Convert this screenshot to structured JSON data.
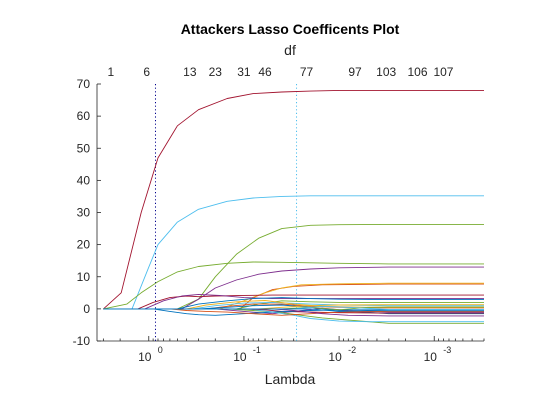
{
  "chart_data": {
    "type": "line",
    "title": "Attackers Lasso Coefficents Plot",
    "top_axis_label": "df",
    "xlabel": "Lambda",
    "ylabel": "",
    "x_scale": "log-reversed",
    "xlim": [
      3.5,
      0.0003
    ],
    "ylim": [
      -10,
      70
    ],
    "y_ticks": [
      -10,
      0,
      10,
      20,
      30,
      40,
      50,
      60,
      70
    ],
    "x_ticks": [
      {
        "value": 1,
        "base": "10",
        "exp": "0"
      },
      {
        "value": 0.1,
        "base": "10",
        "exp": "-1"
      },
      {
        "value": 0.01,
        "base": "10",
        "exp": "-2"
      },
      {
        "value": 0.001,
        "base": "10",
        "exp": "-3"
      }
    ],
    "df_ticks": [
      {
        "lambda": 2.5,
        "label": "1"
      },
      {
        "lambda": 1.05,
        "label": "6"
      },
      {
        "lambda": 0.37,
        "label": "13"
      },
      {
        "lambda": 0.2,
        "label": "23"
      },
      {
        "lambda": 0.1,
        "label": "31"
      },
      {
        "lambda": 0.06,
        "label": "46"
      },
      {
        "lambda": 0.022,
        "label": "77"
      },
      {
        "lambda": 0.0068,
        "label": "97"
      },
      {
        "lambda": 0.0032,
        "label": "103"
      },
      {
        "lambda": 0.0015,
        "label": "106"
      },
      {
        "lambda": 0.0008,
        "label": "107"
      }
    ],
    "reference_lines": [
      {
        "lambda": 0.85,
        "style": "dotted",
        "color": "#00008b"
      },
      {
        "lambda": 0.028,
        "style": "dotted",
        "color": "#4dbeee"
      }
    ],
    "grid": false,
    "series": [
      {
        "color": "#a2142f",
        "x": [
          3.0,
          1.95,
          1.2,
          0.8,
          0.5,
          0.3,
          0.15,
          0.08,
          0.04,
          0.02,
          0.01,
          0.003,
          0.0003
        ],
        "y": [
          0,
          5,
          30,
          47,
          57,
          62,
          65.5,
          67,
          67.5,
          67.8,
          68,
          68,
          68
        ]
      },
      {
        "color": "#4dbeee",
        "x": [
          3.0,
          1.5,
          1.0,
          0.8,
          0.5,
          0.3,
          0.15,
          0.08,
          0.04,
          0.02,
          0.01,
          0.003,
          0.0003
        ],
        "y": [
          0,
          0,
          13,
          20,
          27,
          31,
          33.5,
          34.5,
          35,
          35.2,
          35.2,
          35.2,
          35.2
        ]
      },
      {
        "color": "#77ac30",
        "x": [
          3.0,
          0.5,
          0.3,
          0.2,
          0.12,
          0.07,
          0.04,
          0.02,
          0.01,
          0.003,
          0.0003
        ],
        "y": [
          0,
          0,
          3,
          10,
          17,
          22,
          25,
          26,
          26.2,
          26.3,
          26.3
        ]
      },
      {
        "color": "#77ac30",
        "x": [
          3.0,
          1.7,
          1.2,
          0.8,
          0.5,
          0.3,
          0.15,
          0.08,
          0.04,
          0.01,
          0.003,
          0.0003
        ],
        "y": [
          0,
          1.5,
          5,
          8.5,
          11.5,
          13.2,
          14.2,
          14.6,
          14.5,
          14.2,
          14,
          14
        ]
      },
      {
        "color": "#7e2f8e",
        "x": [
          3.0,
          0.45,
          0.3,
          0.2,
          0.12,
          0.07,
          0.04,
          0.02,
          0.01,
          0.003,
          0.0003
        ],
        "y": [
          0,
          0,
          3,
          6.5,
          9,
          10.8,
          11.8,
          12.4,
          12.8,
          13,
          13
        ]
      },
      {
        "color": "#d95319",
        "x": [
          3.0,
          0.11,
          0.08,
          0.05,
          0.03,
          0.015,
          0.008,
          0.003,
          0.0003
        ],
        "y": [
          0,
          0,
          3.5,
          6,
          7,
          7.5,
          7.6,
          7.7,
          7.7
        ]
      },
      {
        "color": "#edb120",
        "x": [
          3.0,
          0.18,
          0.1,
          0.06,
          0.04,
          0.025,
          0.01,
          0.003,
          0.0003
        ],
        "y": [
          0,
          0,
          2.5,
          5,
          6.5,
          7.5,
          7.8,
          8,
          8
        ]
      },
      {
        "color": "#a2142f",
        "x": [
          3.0,
          1.3,
          0.9,
          0.6,
          0.4,
          0.3,
          0.2,
          0.1,
          0.05,
          0.02,
          0.01,
          0.003,
          0.0003
        ],
        "y": [
          0,
          0,
          2,
          3.5,
          4,
          3.8,
          4,
          4.2,
          4.3,
          4.3,
          4.3,
          4.3,
          4.3
        ]
      },
      {
        "color": "#7e2f8e",
        "x": [
          3.0,
          1.1,
          0.7,
          0.45,
          0.3,
          0.18,
          0.1,
          0.05,
          0.02,
          0.008,
          0.003,
          0.0003
        ],
        "y": [
          0,
          0,
          2.5,
          4,
          4.5,
          4.2,
          3.5,
          3.2,
          3.2,
          3.2,
          3.2,
          3.2
        ]
      },
      {
        "color": "#0072bd",
        "x": [
          3.0,
          0.5,
          0.3,
          0.15,
          0.08,
          0.04,
          0.02,
          0.01,
          0.003,
          0.0003
        ],
        "y": [
          0,
          0,
          1.5,
          2.5,
          3.2,
          3.5,
          3.2,
          3,
          2.9,
          2.9
        ]
      },
      {
        "color": "#77ac30",
        "x": [
          3.0,
          0.12,
          0.07,
          0.04,
          0.02,
          0.01,
          0.003,
          0.0003
        ],
        "y": [
          0,
          0,
          1.5,
          2.5,
          2.2,
          2,
          2,
          2
        ]
      },
      {
        "color": "#4dbeee",
        "x": [
          3.0,
          0.35,
          0.2,
          0.1,
          0.05,
          0.02,
          0.01,
          0.003,
          0.0003
        ],
        "y": [
          0,
          0,
          1,
          1.8,
          2,
          1.5,
          1.2,
          1,
          1
        ]
      },
      {
        "color": "#d95319",
        "x": [
          3.0,
          0.25,
          0.15,
          0.08,
          0.04,
          0.02,
          0.01,
          0.003,
          0.0003
        ],
        "y": [
          0,
          0,
          0.8,
          1.5,
          1.5,
          0.8,
          0.5,
          0.3,
          0.3
        ]
      },
      {
        "color": "#edb120",
        "x": [
          3.0,
          0.4,
          0.25,
          0.12,
          0.06,
          0.03,
          0.015,
          0.005,
          0.0003
        ],
        "y": [
          0,
          0,
          1.2,
          2.2,
          2.6,
          1.5,
          0.8,
          0.5,
          0.5
        ]
      },
      {
        "color": "#0072bd",
        "x": [
          3.0,
          0.3,
          0.15,
          0.08,
          0.04,
          0.02,
          0.01,
          0.003,
          0.0003
        ],
        "y": [
          0,
          0,
          0.5,
          1,
          1.2,
          0.5,
          -0.5,
          -1.5,
          -1.5
        ]
      },
      {
        "color": "#7e2f8e",
        "x": [
          3.0,
          0.2,
          0.1,
          0.05,
          0.03,
          0.015,
          0.008,
          0.003,
          0.0003
        ],
        "y": [
          0,
          0,
          -0.8,
          -1.5,
          -0.8,
          0.2,
          -0.5,
          -1,
          -1
        ]
      },
      {
        "color": "#77ac30",
        "x": [
          3.0,
          0.15,
          0.08,
          0.04,
          0.025,
          0.015,
          0.008,
          0.003,
          0.0003
        ],
        "y": [
          0,
          0,
          -0.5,
          -1.2,
          -2,
          -2.8,
          -3.5,
          -4.5,
          -4.5
        ]
      },
      {
        "color": "#4dbeee",
        "x": [
          3.0,
          0.09,
          0.05,
          0.03,
          0.02,
          0.01,
          0.005,
          0.003,
          0.0003
        ],
        "y": [
          0,
          0,
          -1,
          -2,
          -3,
          -3.8,
          -4,
          -4,
          -4
        ]
      },
      {
        "color": "#a2142f",
        "x": [
          3.0,
          0.1,
          0.06,
          0.04,
          0.02,
          0.01,
          0.003,
          0.0003
        ],
        "y": [
          0,
          0,
          -0.3,
          -0.8,
          -1,
          -1.2,
          -1.3,
          -1.3
        ]
      },
      {
        "color": "#0072bd",
        "x": [
          3.0,
          0.9,
          0.6,
          0.4,
          0.3,
          0.2,
          0.1,
          0.05,
          0.02,
          0.01,
          0.003,
          0.0003
        ],
        "y": [
          0,
          0,
          -0.8,
          -1.5,
          -1.8,
          -2,
          -1.5,
          -1,
          -0.5,
          -0.3,
          -0.3,
          -0.3
        ]
      },
      {
        "color": "#d95319",
        "x": [
          3.0,
          0.6,
          0.4,
          0.25,
          0.15,
          0.08,
          0.04,
          0.02,
          0.01,
          0.003,
          0.0003
        ],
        "y": [
          0,
          0,
          -0.5,
          -0.8,
          -1,
          -1.5,
          -2,
          -1.5,
          -1,
          -0.8,
          -0.8
        ]
      },
      {
        "color": "#edb120",
        "x": [
          3.0,
          0.07,
          0.04,
          0.02,
          0.01,
          0.003,
          0.0003
        ],
        "y": [
          0,
          0,
          0.5,
          1,
          1.2,
          1.3,
          1.3
        ]
      },
      {
        "color": "#7e2f8e",
        "x": [
          3.0,
          0.05,
          0.03,
          0.015,
          0.008,
          0.003,
          0.0003
        ],
        "y": [
          0,
          0,
          -0.5,
          -1.5,
          -2,
          -2.2,
          -2.2
        ]
      },
      {
        "color": "#77ac30",
        "x": [
          3.0,
          0.04,
          0.02,
          0.01,
          0.005,
          0.003,
          0.0003
        ],
        "y": [
          0,
          0,
          0.5,
          -0.3,
          0.5,
          0.6,
          0.6
        ]
      },
      {
        "color": "#4dbeee",
        "x": [
          3.0,
          0.03,
          0.015,
          0.008,
          0.003,
          0.0003
        ],
        "y": [
          0,
          0,
          0.8,
          0.5,
          -0.2,
          -0.2
        ]
      },
      {
        "color": "#0072bd",
        "x": [
          3.0,
          0.02,
          0.01,
          0.005,
          0.003,
          0.0003
        ],
        "y": [
          0,
          0,
          -0.8,
          -0.5,
          -0.6,
          -0.6
        ]
      }
    ]
  }
}
